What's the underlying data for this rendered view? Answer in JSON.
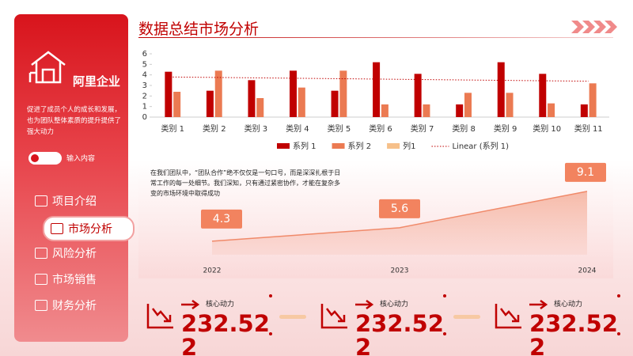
{
  "header": {
    "title": "数据总结市场分析"
  },
  "sidebar": {
    "company": "阿里企业",
    "description": "促进了成员个人的成长和发展，也为团队整体素质的提升提供了强大动力",
    "button": "输入内容",
    "nav": [
      "项目介绍",
      "市场分析",
      "风险分析",
      "市场销售",
      "财务分析"
    ],
    "active": 1
  },
  "paragraph": "在我们团队中，“团队合作”绝不仅仅是一句口号，而是深深扎根于日常工作的每一处细节。我们深知，只有通过紧密协作，才能在复杂多变的市场环境中取得成功",
  "stats": [
    {
      "label": "核心动力",
      "value": "232.522"
    },
    {
      "label": "核心动力",
      "value": "232.522"
    },
    {
      "label": "核心动力",
      "value": "232.522"
    }
  ],
  "chart_data": [
    {
      "type": "bar",
      "categories": [
        "类别 1",
        "类别 2",
        "类别 3",
        "类别 4",
        "类别 5",
        "类别 6",
        "类别 7",
        "类别 8",
        "类别 9",
        "类别 10",
        "类别 11"
      ],
      "series": [
        {
          "name": "系列 1",
          "color": "#c00000",
          "values": [
            4.3,
            2.5,
            3.5,
            4.4,
            2.5,
            5.2,
            4.1,
            1.2,
            5.2,
            4.1,
            1.2
          ]
        },
        {
          "name": "系列 2",
          "color": "#eb7a52",
          "values": [
            2.4,
            4.4,
            1.8,
            2.8,
            4.4,
            1.2,
            1.2,
            2.3,
            2.3,
            1.3,
            3.2
          ]
        },
        {
          "name": "列1",
          "color": "#f6c08a",
          "values": [
            null,
            null,
            null,
            null,
            null,
            null,
            null,
            null,
            null,
            null,
            null
          ]
        }
      ],
      "trendline": {
        "name": "Linear (系列 1)",
        "color": "#c00000",
        "values": [
          3.8,
          3.4
        ]
      },
      "ylim": [
        0,
        6
      ],
      "yticks": [
        0,
        1,
        2,
        3,
        4,
        5,
        6
      ]
    },
    {
      "type": "area",
      "x": [
        "2022",
        "2023",
        "2024"
      ],
      "values": [
        4.3,
        5.6,
        9.1
      ],
      "color": "#f08a6a",
      "ylim": [
        3,
        10
      ]
    }
  ]
}
